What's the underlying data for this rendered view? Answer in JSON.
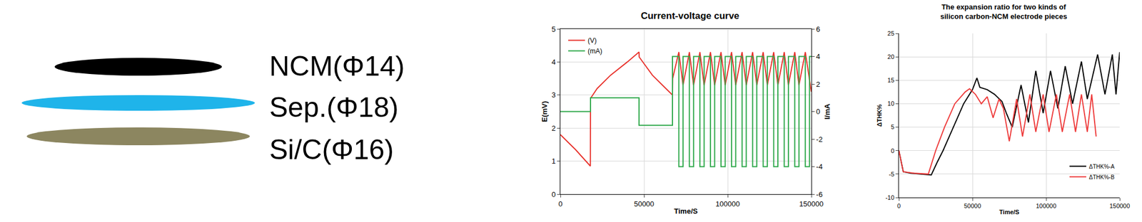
{
  "diagram": {
    "layers": [
      {
        "label": "NCM(Φ14)",
        "color": "#000000"
      },
      {
        "label": "Sep.(Φ18)",
        "color": "#1fb4ea"
      },
      {
        "label": "Si/C(Φ16)",
        "color": "#8c8660"
      }
    ]
  },
  "chart_data": [
    {
      "type": "line",
      "title": [
        "Current-voltage curve"
      ],
      "x_label": "Time/S",
      "y_label": "E(mV)",
      "y2_label": "I/mA",
      "xlim": [
        0,
        150000
      ],
      "xticks": [
        0,
        50000,
        100000,
        150000
      ],
      "ylim": [
        0,
        5
      ],
      "yticks": [
        0,
        1,
        2,
        3,
        4,
        5
      ],
      "y2lim": [
        -6,
        6
      ],
      "y2ticks": [
        -6,
        -4,
        -2,
        0,
        2,
        4,
        6
      ],
      "grid": true,
      "legend": "upper left",
      "series": [
        {
          "name": "(V)",
          "color": "#e8322c",
          "line_style": "solid",
          "x": [
            0,
            9000,
            17900,
            18000,
            22000,
            30000,
            40000,
            47000,
            47100,
            55000,
            62000,
            67000,
            67100,
            70800,
            73300,
            77100,
            79600,
            83400,
            85900,
            89700,
            92200,
            96000,
            98500,
            102300,
            104800,
            108600,
            111100,
            114900,
            117400,
            121200,
            123700,
            127500,
            130000,
            133800,
            136300,
            140100,
            142600,
            146400,
            150000
          ],
          "values": [
            1.8,
            1.35,
            0.85,
            2.9,
            3.2,
            3.6,
            4.0,
            4.3,
            4.15,
            3.6,
            3.25,
            3.0,
            3.5,
            4.3,
            3.3,
            4.3,
            3.3,
            4.3,
            3.3,
            4.3,
            3.3,
            4.3,
            3.3,
            4.3,
            3.3,
            4.3,
            3.3,
            4.3,
            3.3,
            4.3,
            3.3,
            4.3,
            3.3,
            4.3,
            3.3,
            4.3,
            3.3,
            4.3,
            3.1
          ]
        },
        {
          "name": "(mA)",
          "color": "#2ea84a",
          "line_style": "step",
          "axis": "y2",
          "x": [
            0,
            18000,
            47000,
            67000,
            70800,
            73300,
            77100,
            79600,
            83400,
            85900,
            89700,
            92200,
            96000,
            98500,
            102300,
            104800,
            108600,
            111100,
            114900,
            117400,
            121200,
            123700,
            127500,
            130000,
            133800,
            136300,
            140100,
            142600,
            146400,
            148900,
            150000
          ],
          "values": [
            0,
            1,
            -1,
            4,
            -4,
            4,
            -4,
            4,
            -4,
            4,
            -4,
            4,
            -4,
            4,
            -4,
            4,
            -4,
            4,
            -4,
            4,
            -4,
            4,
            -4,
            4,
            -4,
            4,
            -4,
            4,
            -4,
            4,
            4
          ]
        }
      ]
    },
    {
      "type": "line",
      "title": [
        "The expansion ratio for two kinds of",
        "silicon carbon-NCM electrode pieces"
      ],
      "x_label": "Time/S",
      "y_label": "ΔTHK%",
      "xlim": [
        0,
        150000
      ],
      "xticks": [
        0,
        50000,
        100000,
        150000
      ],
      "ylim": [
        -10,
        25
      ],
      "yticks": [
        -10,
        -5,
        0,
        5,
        10,
        15,
        20,
        25
      ],
      "grid": true,
      "legend": "lower right",
      "series": [
        {
          "name": "ΔTHK%-A",
          "color": "#000000",
          "line_style": "solid",
          "x": [
            0,
            3000,
            8000,
            15000,
            22000,
            26000,
            30000,
            37000,
            44000,
            50000,
            53000,
            55000,
            60000,
            65000,
            70000,
            73000,
            77000,
            83000,
            88000,
            93000,
            98000,
            103000,
            108000,
            113000,
            118000,
            124000,
            128000,
            135000,
            140000,
            145000,
            147500,
            150000
          ],
          "values": [
            0,
            -4.5,
            -4.8,
            -5,
            -5.2,
            -2.5,
            0,
            5,
            10,
            13,
            15.5,
            13.5,
            13,
            12,
            10.5,
            8,
            5,
            14,
            6,
            17,
            8,
            17,
            9,
            18,
            10,
            19,
            11,
            20.5,
            12,
            20.5,
            12,
            21
          ]
        },
        {
          "name": "ΔTHK%-B",
          "color": "#ee3b3b",
          "line_style": "solid",
          "x": [
            0,
            3000,
            10000,
            20000,
            25000,
            31000,
            38000,
            45000,
            48000,
            52000,
            56000,
            60000,
            64000,
            68000,
            71000,
            75000,
            80000,
            84000,
            89000,
            93000,
            98000,
            102000,
            107000,
            111000,
            116000,
            120000,
            124000,
            128000,
            131000,
            134000
          ],
          "values": [
            0,
            -4.5,
            -4.8,
            -5,
            0,
            5,
            10,
            12.5,
            13.2,
            12,
            10,
            11.5,
            7,
            11,
            9,
            2,
            11,
            3,
            12,
            4,
            12,
            4,
            12,
            4,
            12,
            4,
            12,
            4,
            12,
            3
          ]
        }
      ]
    }
  ]
}
